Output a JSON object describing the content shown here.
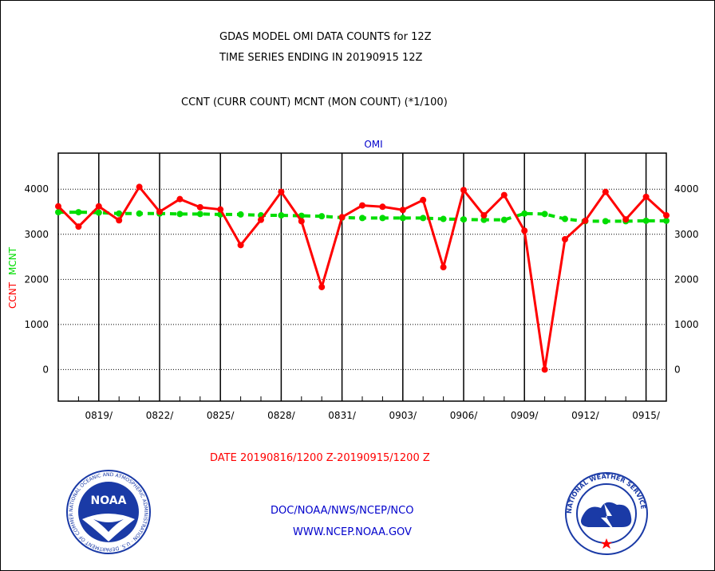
{
  "header": {
    "title1": "GDAS MODEL OMI DATA COUNTS for 12Z",
    "title2": "TIME SERIES ENDING IN 20190915 12Z",
    "subtitle": "CCNT (CURR COUNT) MCNT (MON COUNT) (*1/100)"
  },
  "footer": {
    "date_range": "DATE 20190816/1200 Z-20190915/1200 Z",
    "org": "DOC/NOAA/NWS/NCEP/NCO",
    "url": "WWW.NCEP.NOAA.GOV",
    "noaa_logo_text": "NOAA",
    "noaa_ring_text": "NATIONAL OCEANIC AND ATMOSPHERIC ADMINISTRATION · U.S. DEPARTMENT OF COMMERCE",
    "nws_ring_text": "NATIONAL WEATHER SERVICE"
  },
  "colors": {
    "ccnt": "#ff0000",
    "mcnt": "#00dd00",
    "panel_title": "#0000cc",
    "footer_blue": "#0000cc"
  },
  "chart_data": {
    "type": "line",
    "title": "OMI",
    "ylabel_ccnt": "CCNT",
    "ylabel_mcnt": "MCNT",
    "ylim": [
      -700,
      4800
    ],
    "yticks": [
      0,
      1000,
      2000,
      3000,
      4000
    ],
    "ytick_labels": [
      "0",
      "1000",
      "2000",
      "3000",
      "4000"
    ],
    "xticks": [
      "0819/",
      "0822/",
      "0825/",
      "0828/",
      "0831/",
      "0903/",
      "0906/",
      "0909/",
      "0912/",
      "0915/"
    ],
    "grid": true,
    "series": [
      {
        "name": "CCNT",
        "color": "#ff0000",
        "x": [
          0,
          1,
          2,
          3,
          4,
          5,
          6,
          7,
          8,
          9,
          10,
          11,
          12,
          13,
          14,
          15,
          16,
          17,
          18,
          19,
          20,
          21,
          22,
          23,
          24,
          25,
          26,
          27,
          28,
          29,
          30
        ],
        "values": [
          3620,
          3170,
          3620,
          3310,
          4050,
          3500,
          3780,
          3600,
          3550,
          2760,
          3320,
          3940,
          3290,
          1830,
          3380,
          3640,
          3610,
          3540,
          3760,
          2270,
          3980,
          3420,
          3870,
          3080,
          0,
          2890,
          3300,
          3940,
          3330,
          3830,
          3420
        ]
      },
      {
        "name": "MCNT",
        "color": "#00dd00",
        "x": [
          0,
          1,
          2,
          3,
          4,
          5,
          6,
          7,
          8,
          9,
          10,
          11,
          12,
          13,
          14,
          15,
          16,
          17,
          18,
          19,
          20,
          21,
          22,
          23,
          24,
          25,
          26,
          27,
          28,
          29,
          30
        ],
        "values": [
          3490,
          3490,
          3480,
          3460,
          3460,
          3460,
          3450,
          3450,
          3440,
          3440,
          3420,
          3420,
          3410,
          3400,
          3370,
          3360,
          3360,
          3360,
          3360,
          3340,
          3330,
          3320,
          3320,
          3460,
          3450,
          3340,
          3290,
          3290,
          3290,
          3300,
          3300
        ]
      }
    ]
  }
}
